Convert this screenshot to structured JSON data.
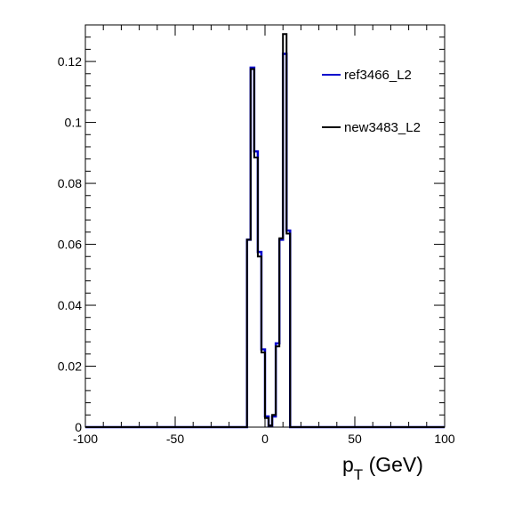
{
  "chart_data": {
    "type": "histogram",
    "xlabel_main": "p",
    "xlabel_sub": "T",
    "xlabel_unit": " (GeV)",
    "xlim": [
      -100,
      100
    ],
    "ylim": [
      0,
      0.132
    ],
    "x_ticks": [
      -100,
      -50,
      0,
      50,
      100
    ],
    "x_tick_labels": [
      "-100",
      "-50",
      "0",
      "50",
      "100"
    ],
    "y_ticks": [
      0,
      0.02,
      0.04,
      0.06,
      0.08,
      0.1,
      0.12
    ],
    "y_tick_labels": [
      "0",
      "0.02",
      "0.04",
      "0.06",
      "0.08",
      "0.1",
      "0.12"
    ],
    "bin_width": 2,
    "bin_edges_start": -10,
    "series": [
      {
        "name": "ref3466_L2",
        "color": "#0000cc",
        "values": [
          0.0615,
          0.118,
          0.0905,
          0.0575,
          0.0255,
          0.0035,
          0.0005,
          0.0035,
          0.0275,
          0.0615,
          0.1225,
          0.0645
        ]
      },
      {
        "name": "new3483_L2",
        "color": "#000000",
        "values": [
          0.0615,
          0.1175,
          0.0885,
          0.056,
          0.0245,
          0.003,
          0.0005,
          0.004,
          0.0265,
          0.062,
          0.129,
          0.0635
        ]
      }
    ],
    "legend_position": "top-right"
  }
}
